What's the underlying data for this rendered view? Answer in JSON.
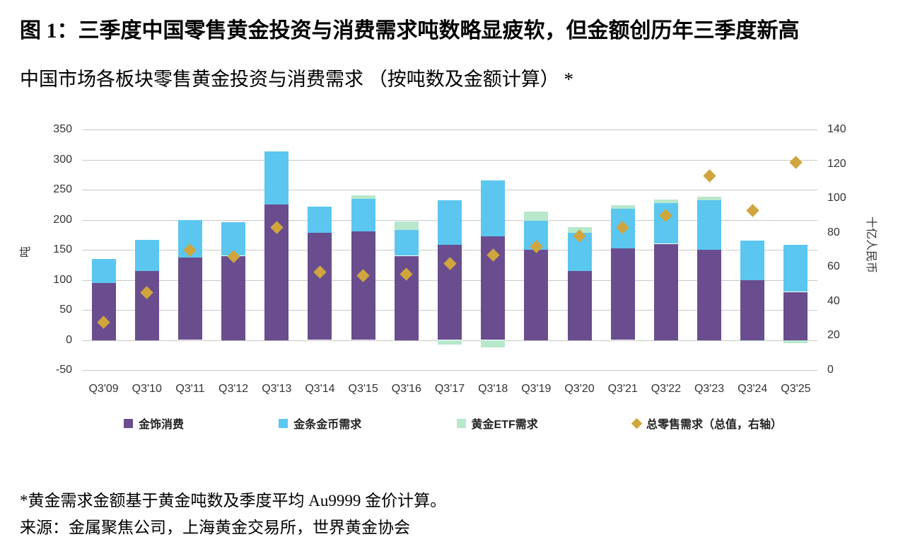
{
  "page": {
    "title": "图 1：三季度中国零售黄金投资与消费需求吨数略显疲软，但金额创历年三季度新高",
    "subtitle": "中国市场各板块零售黄金投资与消费需求 （按吨数及金额计算） *",
    "footnote_calc": "*黄金需求金额基于黄金吨数及季度平均 Au9999 金价计算。",
    "footnote_source": "来源：金属聚焦公司，上海黄金交易所，世界黄金协会"
  },
  "colors": {
    "gridline": "#c9c9c9",
    "axis_text": "#333333"
  },
  "chart_data": {
    "type": "bar",
    "stacked": true,
    "grid": true,
    "legend_position": "bottom",
    "categories": [
      "Q3'09",
      "Q3'10",
      "Q3'11",
      "Q3'12",
      "Q3'13",
      "Q3'14",
      "Q3'15",
      "Q3'16",
      "Q3'17",
      "Q3'18",
      "Q3'19",
      "Q3'20",
      "Q3'21",
      "Q3'22",
      "Q3'23",
      "Q3'24",
      "Q3'25"
    ],
    "series": [
      {
        "name": "金饰消费",
        "color": "#6a4d8e",
        "values": [
          95,
          115,
          137,
          140,
          225,
          178,
          181,
          140,
          158,
          172,
          150,
          115,
          152,
          160,
          150,
          100,
          80
        ]
      },
      {
        "name": "金条金币需求",
        "color": "#5bc6f0",
        "values": [
          40,
          52,
          63,
          56,
          88,
          44,
          54,
          43,
          74,
          93,
          48,
          63,
          66,
          68,
          82,
          65,
          78
        ]
      },
      {
        "name": "黄金ETF需求",
        "color": "#b8e8cc",
        "values": [
          0,
          0,
          0,
          0,
          0,
          0,
          6,
          14,
          -8,
          -12,
          16,
          10,
          6,
          5,
          6,
          -2,
          -5
        ]
      }
    ],
    "scatter": {
      "name": "总零售需求（总值，右轴）",
      "color": "#d0a53e",
      "axis": "right",
      "values": [
        28,
        45,
        70,
        66,
        83,
        57,
        55,
        56,
        62,
        67,
        72,
        78,
        83,
        90,
        113,
        93,
        121
      ]
    },
    "left_axis": {
      "label": "吨",
      "min": -50,
      "max": 350,
      "ticks": [
        350,
        300,
        250,
        200,
        150,
        100,
        50,
        0,
        -50
      ]
    },
    "right_axis": {
      "label": "十亿人民币",
      "min": 0,
      "max": 140,
      "ticks": [
        140,
        120,
        100,
        80,
        60,
        40,
        20,
        0
      ]
    }
  }
}
